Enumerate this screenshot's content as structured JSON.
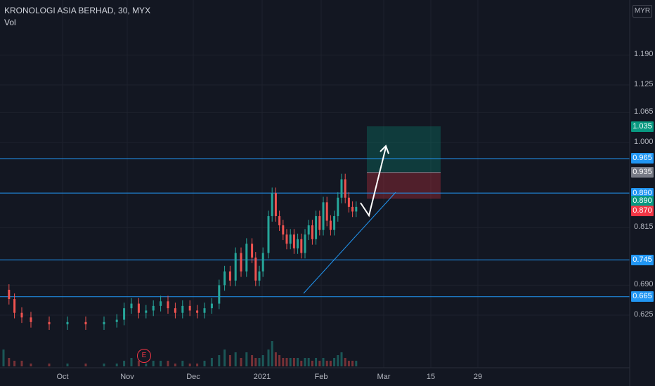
{
  "header": {
    "title": "KRONOLOGI ASIA BERHAD, 30, MYX",
    "indicator": "Vol"
  },
  "currency_button": "MYR",
  "earnings_marker": "E",
  "chart_data": {
    "type": "candlestick",
    "symbol": "KRONOLOGI ASIA BERHAD",
    "interval": "30",
    "exchange": "MYX",
    "currency": "MYR",
    "price_axis_ticks": [
      "1.190",
      "1.125",
      "1.065",
      "1.000",
      "0.815",
      "0.690",
      "0.625"
    ],
    "time_axis_ticks": [
      "Oct",
      "Nov",
      "Dec",
      "2021",
      "Feb",
      "Mar",
      "15",
      "29"
    ],
    "horizontal_levels": [
      {
        "price": "0.965",
        "color": "#2196f3"
      },
      {
        "price": "0.890",
        "color": "#2196f3"
      },
      {
        "price": "0.745",
        "color": "#2196f3"
      },
      {
        "price": "0.665",
        "color": "#2196f3"
      }
    ],
    "price_tags": [
      {
        "text": "1.035",
        "color": "#089981",
        "price": 1.035
      },
      {
        "text": "0.965",
        "color": "#2196f3",
        "price": 0.965
      },
      {
        "text": "0.935",
        "color": "#787b86",
        "price": 0.935
      },
      {
        "text": "0.890",
        "color": "#2196f3",
        "price": 0.89
      },
      {
        "text": "0.890",
        "color": "#089981",
        "price": 0.872
      },
      {
        "text": "0.870",
        "color": "#f23645",
        "price": 0.852
      },
      {
        "text": "0.745",
        "color": "#2196f3",
        "price": 0.745
      },
      {
        "text": "0.665",
        "color": "#2196f3",
        "price": 0.665
      }
    ],
    "long_position": {
      "entry": 0.935,
      "target": 1.035,
      "stop": 0.878
    },
    "colors": {
      "up": "#26a69a",
      "down": "#ef5350",
      "background": "#131722",
      "grid": "#1e222d"
    },
    "price_series": [
      {
        "t": 0,
        "p": 0.68
      },
      {
        "t": 3,
        "p": 0.66
      },
      {
        "t": 6,
        "p": 0.63
      },
      {
        "t": 10,
        "p": 0.62
      },
      {
        "t": 15,
        "p": 0.61
      },
      {
        "t": 25,
        "p": 0.605
      },
      {
        "t": 35,
        "p": 0.61
      },
      {
        "t": 45,
        "p": 0.605
      },
      {
        "t": 55,
        "p": 0.61
      },
      {
        "t": 62,
        "p": 0.615
      },
      {
        "t": 66,
        "p": 0.64
      },
      {
        "t": 70,
        "p": 0.65
      },
      {
        "t": 74,
        "p": 0.63
      },
      {
        "t": 78,
        "p": 0.635
      },
      {
        "t": 82,
        "p": 0.645
      },
      {
        "t": 86,
        "p": 0.655
      },
      {
        "t": 90,
        "p": 0.64
      },
      {
        "t": 94,
        "p": 0.63
      },
      {
        "t": 98,
        "p": 0.645
      },
      {
        "t": 102,
        "p": 0.635
      },
      {
        "t": 106,
        "p": 0.63
      },
      {
        "t": 110,
        "p": 0.64
      },
      {
        "t": 114,
        "p": 0.65
      },
      {
        "t": 118,
        "p": 0.69
      },
      {
        "t": 121,
        "p": 0.72
      },
      {
        "t": 124,
        "p": 0.7
      },
      {
        "t": 127,
        "p": 0.76
      },
      {
        "t": 130,
        "p": 0.72
      },
      {
        "t": 133,
        "p": 0.78
      },
      {
        "t": 136,
        "p": 0.75
      },
      {
        "t": 138,
        "p": 0.7
      },
      {
        "t": 140,
        "p": 0.72
      },
      {
        "t": 142,
        "p": 0.76
      },
      {
        "t": 145,
        "p": 0.84
      },
      {
        "t": 147,
        "p": 0.89
      },
      {
        "t": 149,
        "p": 0.84
      },
      {
        "t": 151,
        "p": 0.82
      },
      {
        "t": 153,
        "p": 0.8
      },
      {
        "t": 155,
        "p": 0.78
      },
      {
        "t": 157,
        "p": 0.8
      },
      {
        "t": 159,
        "p": 0.77
      },
      {
        "t": 161,
        "p": 0.79
      },
      {
        "t": 163,
        "p": 0.76
      },
      {
        "t": 165,
        "p": 0.8
      },
      {
        "t": 167,
        "p": 0.82
      },
      {
        "t": 169,
        "p": 0.79
      },
      {
        "t": 171,
        "p": 0.84
      },
      {
        "t": 173,
        "p": 0.81
      },
      {
        "t": 175,
        "p": 0.87
      },
      {
        "t": 177,
        "p": 0.83
      },
      {
        "t": 179,
        "p": 0.81
      },
      {
        "t": 181,
        "p": 0.84
      },
      {
        "t": 183,
        "p": 0.88
      },
      {
        "t": 185,
        "p": 0.92
      },
      {
        "t": 187,
        "p": 0.88
      },
      {
        "t": 189,
        "p": 0.86
      },
      {
        "t": 191,
        "p": 0.85
      },
      {
        "t": 193,
        "p": 0.86
      }
    ],
    "volume_series": [
      6,
      3,
      2,
      2,
      1,
      1,
      1,
      1,
      1,
      1,
      2,
      3,
      2,
      1,
      2,
      2,
      2,
      1,
      2,
      1,
      1,
      2,
      3,
      4,
      6,
      4,
      5,
      3,
      5,
      4,
      3,
      3,
      4,
      6,
      9,
      5,
      4,
      3,
      3,
      3,
      3,
      3,
      2,
      3,
      3,
      2,
      3,
      2,
      3,
      2,
      2,
      3,
      4,
      5,
      3,
      2,
      2,
      2
    ]
  }
}
